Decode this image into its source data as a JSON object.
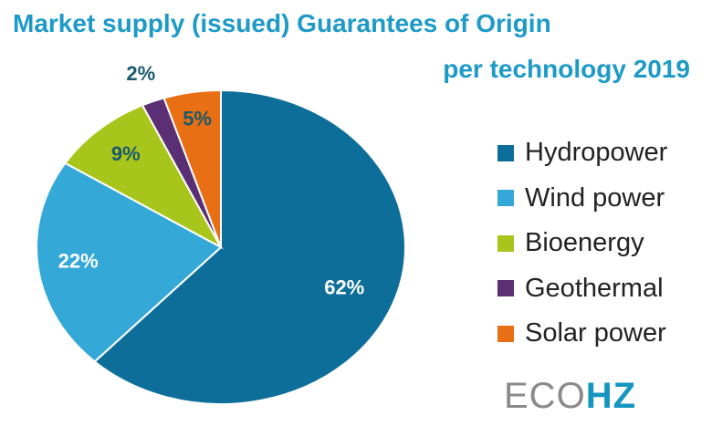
{
  "chart_data": {
    "type": "pie",
    "title": "Market supply (issued) Guarantees of Origin",
    "subtitle": "per technology 2019",
    "legend_position": "right",
    "series": [
      {
        "name": "Hydropower",
        "value": 62,
        "label": "62%",
        "color": "#0e6e9a"
      },
      {
        "name": "Wind power",
        "value": 22,
        "label": "22%",
        "color": "#34a8d6"
      },
      {
        "name": "Bioenergy",
        "value": 9,
        "label": "9%",
        "color": "#a8c51c"
      },
      {
        "name": "Geothermal",
        "value": 2,
        "label": "2%",
        "color": "#5b2f73"
      },
      {
        "name": "Solar power",
        "value": 5,
        "label": "5%",
        "color": "#e86f13"
      }
    ]
  },
  "logo": {
    "part1": "ECO",
    "part2": "HZ"
  }
}
